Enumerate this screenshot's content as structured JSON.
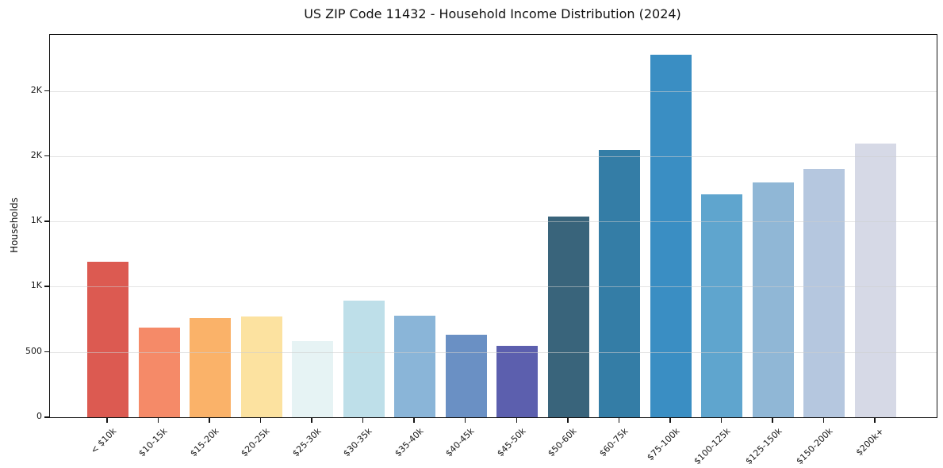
{
  "chart_data": {
    "type": "bar",
    "title": "US ZIP Code 11432 - Household Income Distribution (2024)",
    "xlabel": "",
    "ylabel": "Households",
    "categories": [
      "< $10k",
      "$10-15k",
      "$15-20k",
      "$20-25k",
      "$25-30k",
      "$30-35k",
      "$35-40k",
      "$40-45k",
      "$45-50k",
      "$50-60k",
      "$60-75k",
      "$75-100k",
      "$100-125k",
      "$125-150k",
      "$150-200k",
      "$200k+"
    ],
    "values": [
      1190,
      685,
      760,
      775,
      585,
      895,
      780,
      630,
      545,
      1535,
      2050,
      2780,
      1710,
      1800,
      1905,
      2100
    ],
    "bar_colors": [
      "#dc5a51",
      "#f58a68",
      "#fab269",
      "#fce2a0",
      "#e6f3f4",
      "#bedfe9",
      "#8ab5d8",
      "#6a90c4",
      "#5c5fae",
      "#39647b",
      "#347da6",
      "#3a8ec3",
      "#5fa5ce",
      "#90b7d6",
      "#b5c7df",
      "#d6d9e6"
    ],
    "yticks": {
      "values": [
        0,
        500,
        1000,
        1500,
        2000,
        2500
      ],
      "labels": [
        "0",
        "500",
        "1K",
        "1K",
        "2K",
        "2K"
      ]
    },
    "ylim": [
      0,
      2930
    ],
    "grid": true,
    "grid_axis": "y",
    "legend": "none",
    "background_color": "#ffffff",
    "axis_color": "#141414"
  }
}
